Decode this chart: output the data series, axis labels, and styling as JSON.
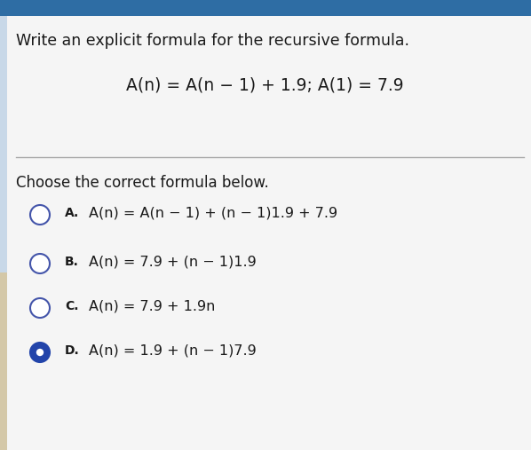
{
  "title_line1": "Write an explicit formula for the recursive formula.",
  "formula": "A(n) = A(n − 1) + 1.9; A(1) = 7.9",
  "subtitle": "Choose the correct formula below.",
  "options": [
    {
      "label": "A.",
      "text": "A(n) = A(n − 1) + (n − 1)1.9 + 7.9",
      "selected": false
    },
    {
      "label": "B.",
      "text": "A(n) = 7.9 + (n − 1)1.9",
      "selected": false
    },
    {
      "label": "C.",
      "text": "A(n) = 7.9 + 1.9n",
      "selected": false
    },
    {
      "label": "D.",
      "text": "A(n) = 1.9 + (n − 1)7.9",
      "selected": true
    }
  ],
  "top_bar_color": "#2e6da4",
  "bg_color": "#dce6f0",
  "card_color": "#f5f5f5",
  "divider_color": "#aaaaaa",
  "text_color": "#1a1a1a",
  "circle_edge_color": "#4455aa",
  "selected_fill": "#2244aa",
  "title_fontsize": 12.5,
  "formula_fontsize": 13.5,
  "subtitle_fontsize": 12,
  "option_fontsize": 11.5,
  "label_fontsize": 10
}
